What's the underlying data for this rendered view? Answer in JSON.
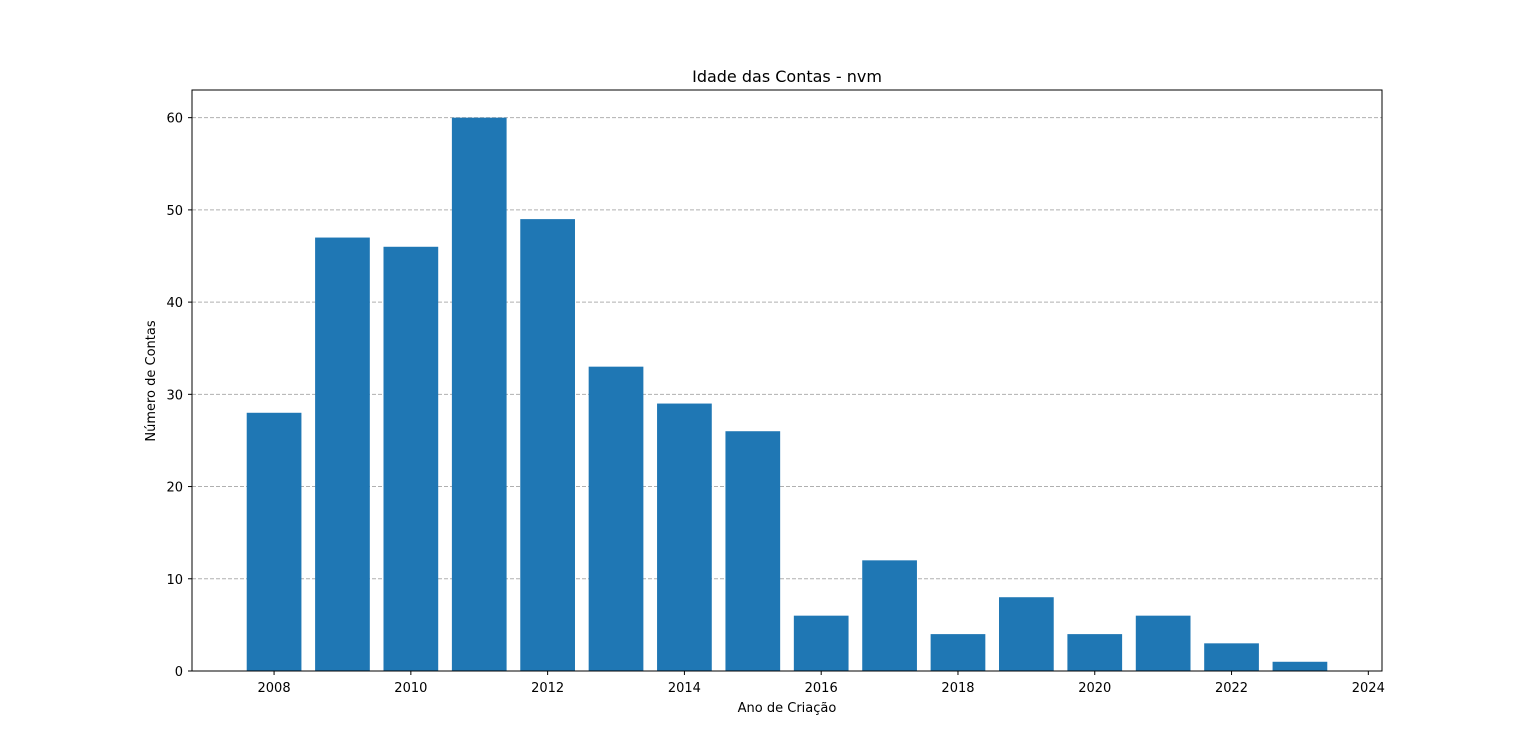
{
  "chart_data": {
    "type": "bar",
    "title": "Idade das Contas - nvm",
    "xlabel": "Ano de Criação",
    "ylabel": "Número de Contas",
    "x": [
      2008,
      2009,
      2010,
      2011,
      2012,
      2013,
      2014,
      2015,
      2016,
      2017,
      2018,
      2019,
      2020,
      2021,
      2022,
      2023
    ],
    "values": [
      28,
      47,
      46,
      60,
      49,
      33,
      29,
      26,
      6,
      12,
      4,
      8,
      4,
      6,
      3,
      1
    ],
    "xlim": [
      2006.8,
      2024.2
    ],
    "ylim": [
      0,
      63
    ],
    "xticks": [
      "2008",
      "2010",
      "2012",
      "2014",
      "2016",
      "2018",
      "2020",
      "2022",
      "2024"
    ],
    "yticks": [
      "0",
      "10",
      "20",
      "30",
      "40",
      "50",
      "60"
    ],
    "grid": "y-dashed",
    "bar_color": "#1f77b4",
    "grid_color": "#b0b0b0"
  }
}
